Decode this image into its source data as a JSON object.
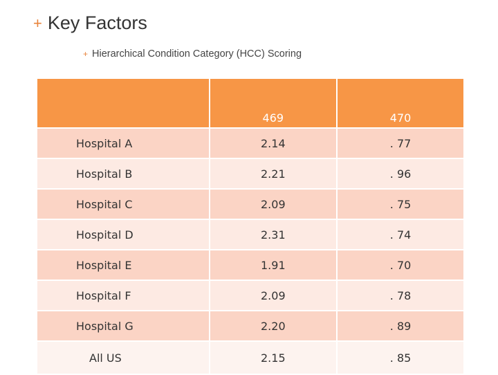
{
  "slide": {
    "title": "Key Factors",
    "subtitle": "Hierarchical Condition Category (HCC) Scoring"
  },
  "table": {
    "headers": [
      "",
      "469",
      "470"
    ],
    "rows": [
      {
        "name": "Hospital A",
        "v469": "2.14",
        "v470": ". 77"
      },
      {
        "name": "Hospital B",
        "v469": "2.21",
        "v470": ". 96"
      },
      {
        "name": "Hospital C",
        "v469": "2.09",
        "v470": ". 75"
      },
      {
        "name": "Hospital D",
        "v469": "2.31",
        "v470": ". 74"
      },
      {
        "name": "Hospital E",
        "v469": "1.91",
        "v470": ". 70"
      },
      {
        "name": "Hospital F",
        "v469": "2.09",
        "v470": ". 78"
      },
      {
        "name": "Hospital G",
        "v469": "2.20",
        "v470": ". 89"
      },
      {
        "name": "All US",
        "v469": "2.15",
        "v470": ". 85"
      }
    ]
  },
  "colors": {
    "accent": "#f79646",
    "row_dark": "#fbd4c5",
    "row_light": "#fdeae3"
  }
}
